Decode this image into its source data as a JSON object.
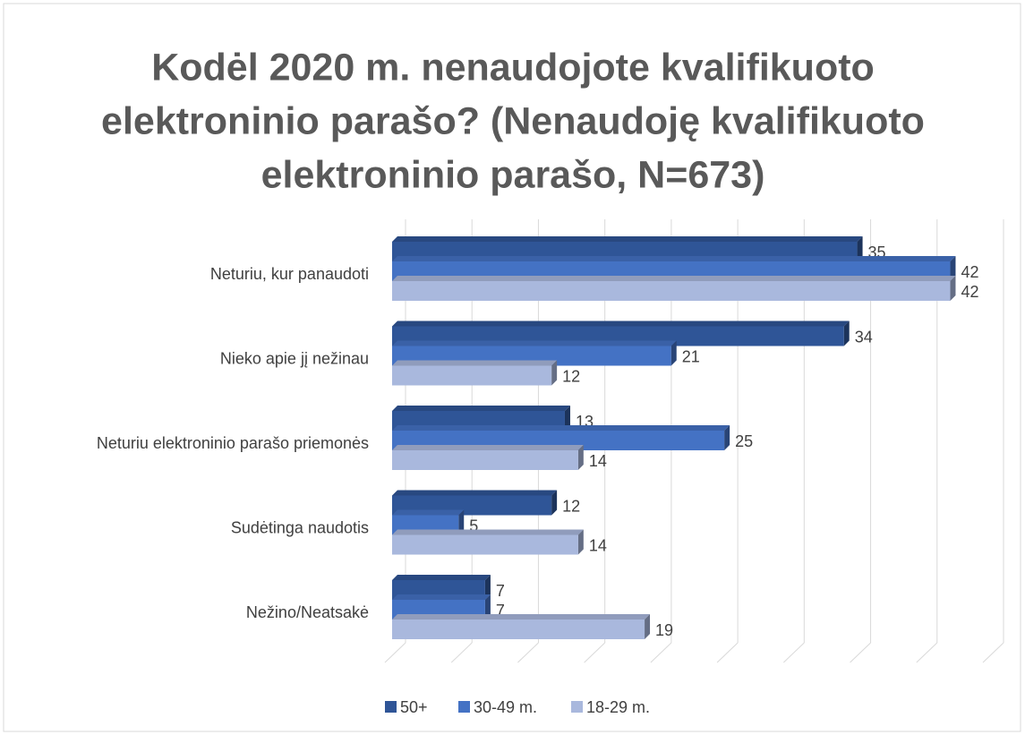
{
  "chart_data": {
    "type": "bar",
    "orientation": "horizontal",
    "title": "Kodėl 2020 m. nenaudojote kvalifikuoto elektroninio parašo? (Nenaudoję kvalifikuoto elektroninio parašo, N=673)",
    "title_lines": [
      "Kodėl 2020 m. nenaudojote kvalifikuoto",
      "elektroninio parašo? (Nenaudoję kvalifikuoto",
      "elektroninio parašo, N=673)"
    ],
    "categories": [
      "Neturiu, kur panaudoti",
      "Nieko apie jį nežinau",
      "Neturiu elektroninio parašo priemonės",
      "Sudėtinga naudotis",
      "Nežino/Neatsakė"
    ],
    "series": [
      {
        "name": "50+",
        "color": "#2f5597",
        "values": [
          35,
          34,
          13,
          12,
          7
        ]
      },
      {
        "name": "30-49 m.",
        "color": "#4472c4",
        "values": [
          42,
          21,
          25,
          5,
          7
        ]
      },
      {
        "name": "18-29 m.",
        "color": "#a9b8dd",
        "values": [
          42,
          12,
          14,
          14,
          19
        ]
      }
    ],
    "xlim": [
      0,
      45
    ],
    "xticks": [
      0,
      5,
      10,
      15,
      20,
      25,
      30,
      35,
      40,
      45
    ],
    "grid": true,
    "legend": "bottom"
  }
}
